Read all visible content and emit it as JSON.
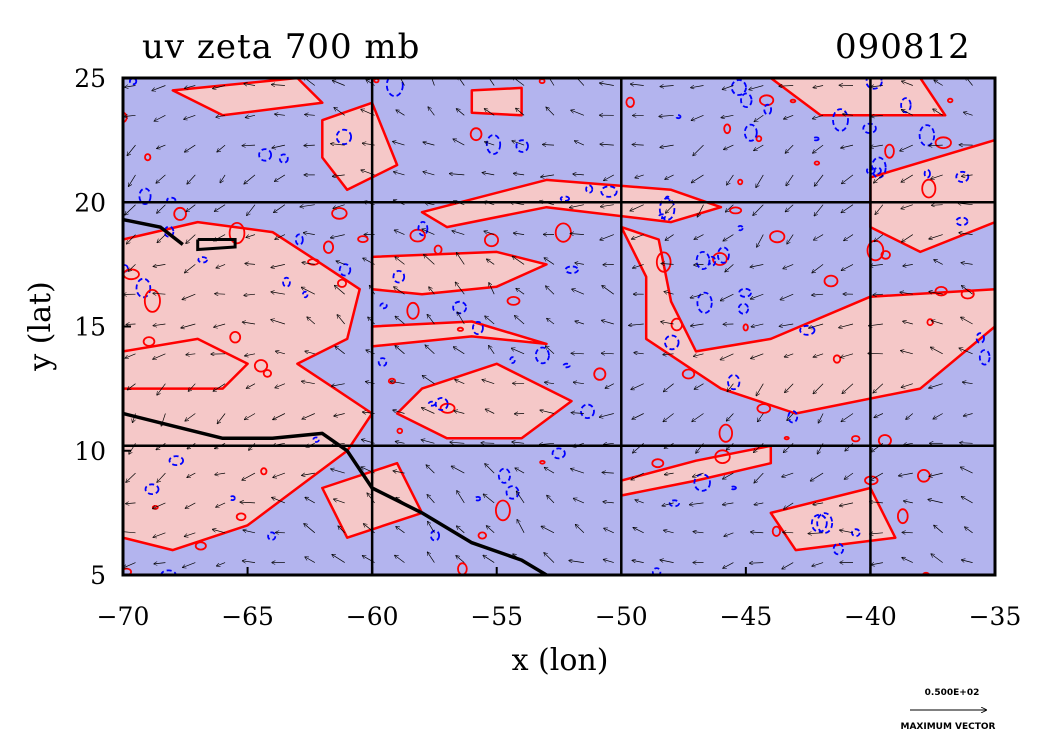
{
  "chart_data": {
    "type": "contour",
    "title": "uv zeta 700 mb",
    "date_label": "090812",
    "xlabel": "x (lon)",
    "ylabel": "y (lat)",
    "xlim": [
      -70,
      -35
    ],
    "ylim": [
      5,
      25
    ],
    "x_ticks": [
      -70,
      -65,
      -60,
      -55,
      -50,
      -45,
      -40,
      -35
    ],
    "y_ticks": [
      5,
      10,
      15,
      20,
      25
    ],
    "gridlines_x": [
      -60,
      -50,
      -40
    ],
    "gridlines_y": [
      10.2,
      20
    ],
    "colors": {
      "positive_fill": "#f5c8c8",
      "negative_fill": "#b3b4ee",
      "positive_contour": "#ff0000",
      "negative_contour": "#0000ff",
      "coastline": "#000000",
      "vectors": "#000000"
    },
    "legend": {
      "magnitude": "0.500E+02",
      "label": "MAXIMUM VECTOR"
    }
  }
}
